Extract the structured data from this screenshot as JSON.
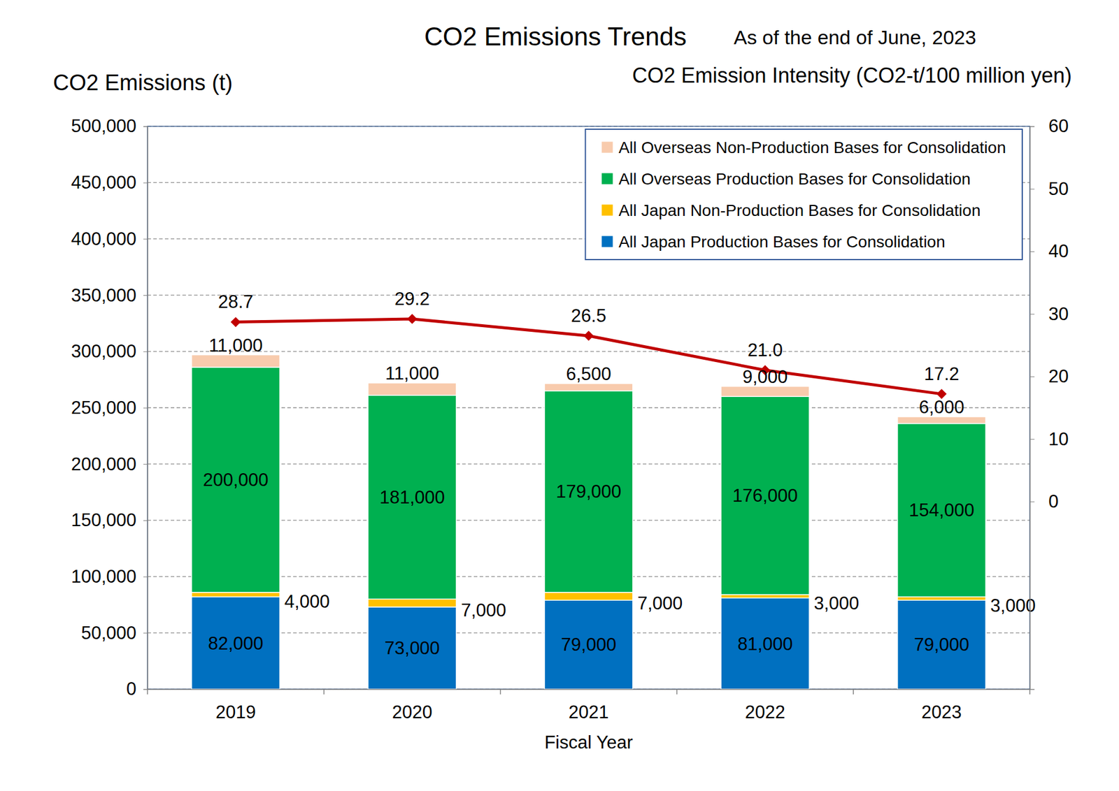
{
  "chart_data": {
    "type": "bar",
    "title": "CO2 Emissions Trends",
    "subtitle": "As of the end of June, 2023",
    "ylabel": "CO2 Emissions (t)",
    "y2label": "CO2 Emission Intensity (CO2-t/100 million yen)",
    "xlabel": "Fiscal Year",
    "categories": [
      "2019",
      "2020",
      "2021",
      "2022",
      "2023"
    ],
    "stacked": true,
    "data_labels": true,
    "grid": true,
    "legend": "upper right",
    "ylim": [
      0,
      500000
    ],
    "yticks": [
      0,
      {
        "value": 50000,
        "label": "50,000"
      },
      {
        "value": 100000,
        "label": "100,000"
      },
      {
        "value": 150000,
        "label": "150,000"
      },
      {
        "value": 200000,
        "label": "200,000"
      },
      {
        "value": 250000,
        "label": "250,000"
      },
      {
        "value": 300000,
        "label": "300,000"
      },
      {
        "value": 350000,
        "label": "350,000"
      },
      {
        "value": 400000,
        "label": "400,000"
      },
      {
        "value": 450000,
        "label": "450,000"
      },
      {
        "value": 500000,
        "label": "500,000"
      }
    ],
    "y2lim": [
      -30,
      60
    ],
    "y2ticks": [
      0,
      10,
      20,
      30,
      40,
      50,
      60
    ],
    "series": [
      {
        "name": "All Japan Production Bases for Consolidation",
        "type": "bar",
        "color": "#0070c0",
        "values": [
          82000,
          73000,
          79000,
          81000,
          79000
        ],
        "value_labels": [
          "82,000",
          "73,000",
          "79,000",
          "81,000",
          "79,000"
        ]
      },
      {
        "name": "All Japan Non-Production Bases for Consolidation",
        "type": "bar",
        "color": "#ffc000",
        "values": [
          4000,
          7000,
          7000,
          3000,
          3000
        ],
        "value_labels": [
          "4,000",
          "7,000",
          "7,000",
          "3,000",
          "3,000"
        ]
      },
      {
        "name": "All Overseas Production Bases for Consolidation",
        "type": "bar",
        "color": "#00b050",
        "values": [
          200000,
          181000,
          179000,
          176000,
          154000
        ],
        "value_labels": [
          "200,000",
          "181,000",
          "179,000",
          "176,000",
          "154,000"
        ]
      },
      {
        "name": "All Overseas Non-Production Bases for Consolidation",
        "type": "bar",
        "color": "#f8cbad",
        "values": [
          11000,
          11000,
          6500,
          9000,
          6000
        ],
        "value_labels": [
          "11,000",
          "11,000",
          "6,500",
          "9,000",
          "6,000"
        ]
      },
      {
        "type": "line",
        "axis": "y2",
        "color": "#c00000",
        "marker": "diamond",
        "line_style": "solid",
        "values": [
          28.7,
          29.2,
          26.5,
          21.0,
          17.2
        ],
        "value_labels": [
          "28.7",
          "29.2",
          "26.5",
          "21.0",
          "17.2"
        ]
      }
    ]
  }
}
